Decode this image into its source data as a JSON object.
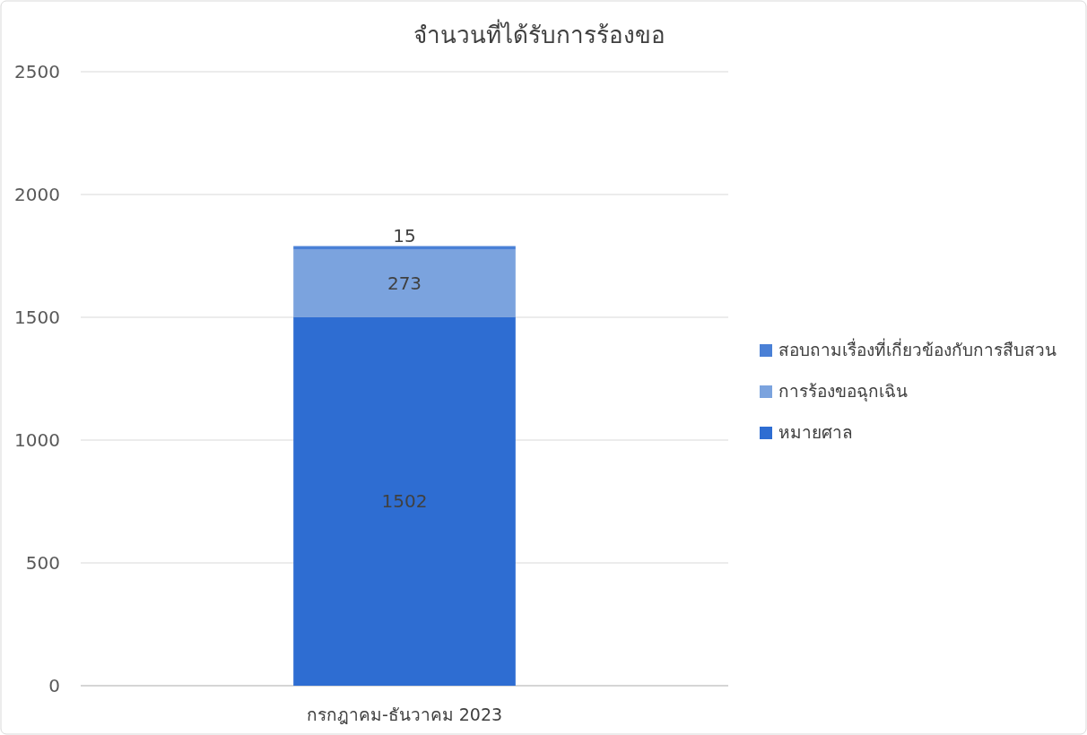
{
  "chart_data": {
    "type": "bar",
    "title": "จำนวนที่ได้รับการร้องขอ",
    "categories": [
      "กรกฎาคม-ธันวาคม 2023"
    ],
    "stacked": true,
    "series": [
      {
        "name": "หมายศาล",
        "color": "#2e6dd2",
        "values": [
          1502
        ]
      },
      {
        "name": "การร้องขอฉุกเฉิน",
        "color": "#7ba3de",
        "values": [
          273
        ]
      },
      {
        "name": "สอบถามเรื่องที่เกี่ยวข้องกับการสืบสวน",
        "color": "#4a80d6",
        "values": [
          15
        ]
      }
    ],
    "ylim": [
      0,
      2500
    ],
    "yticks": [
      0,
      500,
      1000,
      1500,
      2000,
      2500
    ],
    "grid": "y",
    "legend": "right",
    "data_labels": true
  }
}
